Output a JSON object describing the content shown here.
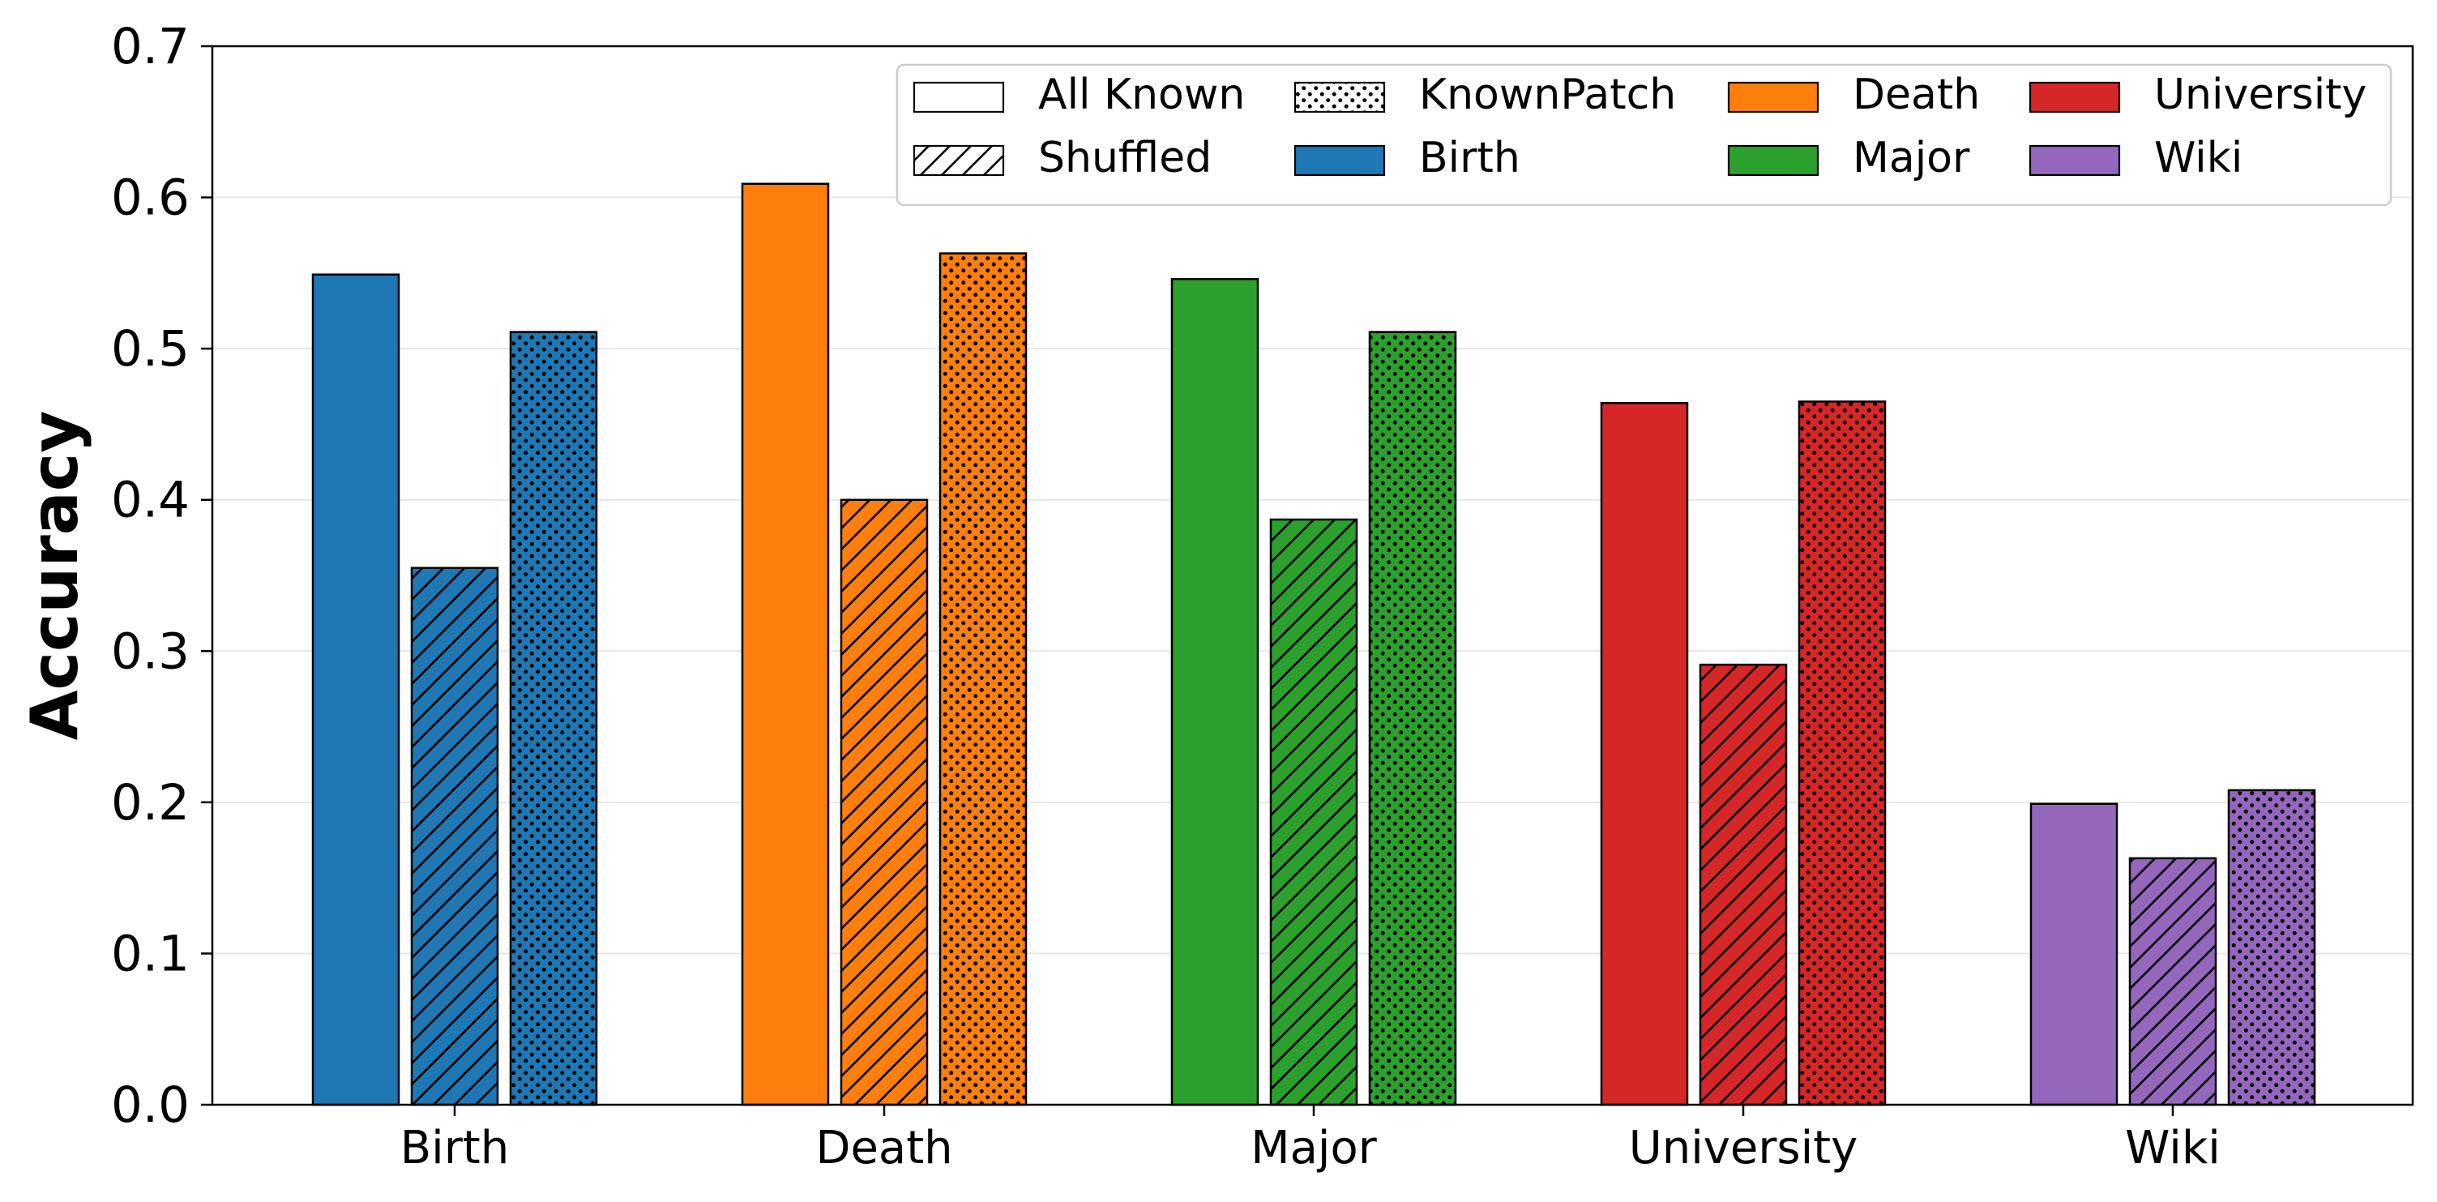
{
  "chart_data": {
    "type": "bar",
    "title": "",
    "xlabel": "",
    "ylabel": "Accuracy",
    "ylim": [
      0,
      0.7
    ],
    "yticks": [
      "0.0",
      "0.1",
      "0.2",
      "0.3",
      "0.4",
      "0.5",
      "0.6",
      "0.7"
    ],
    "grid": "horizontal",
    "legend_position": "top-right",
    "categories": [
      "Birth",
      "Death",
      "Major",
      "University",
      "Wiki"
    ],
    "category_colors": [
      "#1f77b4",
      "#ff7f0e",
      "#2ca02c",
      "#d62728",
      "#9467bd"
    ],
    "series": [
      {
        "name": "All Known",
        "pattern": "solid",
        "values": [
          0.549,
          0.609,
          0.546,
          0.464,
          0.199
        ]
      },
      {
        "name": "Shuffled",
        "pattern": "hatch",
        "values": [
          0.355,
          0.4,
          0.387,
          0.291,
          0.163
        ]
      },
      {
        "name": "KnownPatch",
        "pattern": "dots",
        "values": [
          0.511,
          0.563,
          0.511,
          0.465,
          0.208
        ]
      }
    ],
    "legend": [
      {
        "label": "All Known",
        "swatch": "solid-white"
      },
      {
        "label": "KnownPatch",
        "swatch": "dots-white"
      },
      {
        "label": "Death",
        "swatch": "#ff7f0e"
      },
      {
        "label": "University",
        "swatch": "#d62728"
      },
      {
        "label": "Shuffled",
        "swatch": "hatch-white"
      },
      {
        "label": "Birth",
        "swatch": "#1f77b4"
      },
      {
        "label": "Major",
        "swatch": "#2ca02c"
      },
      {
        "label": "Wiki",
        "swatch": "#9467bd"
      }
    ]
  }
}
